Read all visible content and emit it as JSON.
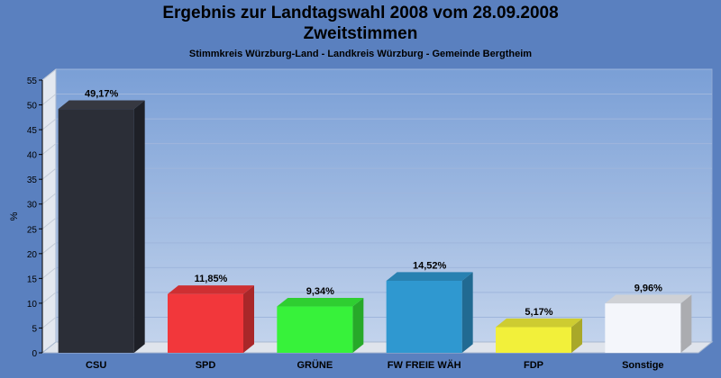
{
  "chart_data": {
    "type": "bar",
    "title": "Ergebnis zur Landtagswahl 2008 vom 28.09.2008",
    "title_line2": "Zweitstimmen",
    "subtitle": "Stimmkreis Würzburg-Land - Landkreis Würzburg - Gemeinde Bergtheim",
    "xlabel": "",
    "ylabel": "%",
    "ylim": [
      0,
      55
    ],
    "yticks": [
      "0",
      "5",
      "10",
      "15",
      "20",
      "25",
      "30",
      "35",
      "40",
      "45",
      "50",
      "55"
    ],
    "grid": true,
    "categories": [
      "CSU",
      "SPD",
      "GRÜNE",
      "FW FREIE WÄH",
      "FDP",
      "Sonstige"
    ],
    "values": [
      49.17,
      11.85,
      9.34,
      14.52,
      5.17,
      9.96
    ],
    "value_labels": [
      "49,17%",
      "11,85%",
      "9,34%",
      "14,52%",
      "5,17%",
      "9,96%"
    ],
    "colors": [
      "#2b2e37",
      "#f2373b",
      "#37f23a",
      "#2f98d0",
      "#f2f03a",
      "#f4f6fb"
    ],
    "background": "#5a80bf"
  }
}
